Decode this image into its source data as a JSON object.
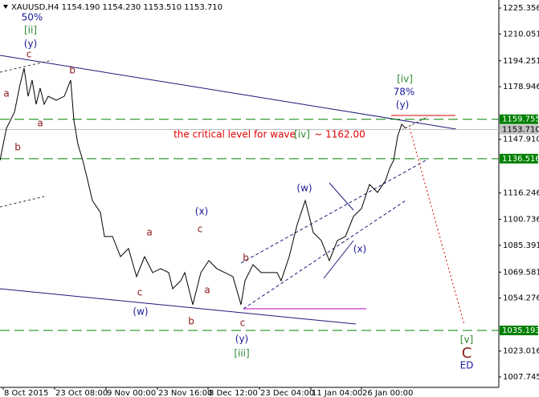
{
  "chart_data": {
    "type": "line",
    "title": "XAUUSD,H4  1154.190 1154.230 1153.510 1153.710",
    "xlim": [
      0,
      621
    ],
    "ylim": [
      1001.6,
      1230.1
    ],
    "xticks": [
      {
        "value": 4,
        "label": "8 Oct 2015"
      },
      {
        "value": 68,
        "label": "23 Oct 08:00"
      },
      {
        "value": 132,
        "label": "9 Nov 00:00"
      },
      {
        "value": 196,
        "label": "23 Nov 16:00"
      },
      {
        "value": 259,
        "label": "8 Dec 12:00"
      },
      {
        "value": 323,
        "label": "23 Dec 04:00"
      },
      {
        "value": 387,
        "label": "11 Jan 04:00"
      },
      {
        "value": 450,
        "label": "26 Jan 00:00"
      }
    ],
    "yticks": [
      1225.356,
      1210.051,
      1194.251,
      1178.946,
      {
        "value": 1147.91,
        "label": "1147.910"
      },
      1116.246,
      1100.736,
      1085.391,
      1069.581,
      1054.276,
      1023.016,
      1007.745
    ],
    "series": [
      {
        "name": "XAUUSD",
        "color": "#000000",
        "x": [
          0,
          8,
          18,
          25,
          30,
          35,
          40,
          45,
          50,
          55,
          60,
          70,
          80,
          88,
          92,
          97,
          103,
          108,
          115,
          125,
          130,
          140,
          150,
          160,
          170,
          180,
          190,
          200,
          210,
          215,
          225,
          230,
          240,
          250,
          260,
          270,
          280,
          290,
          300,
          305,
          315,
          325,
          335,
          345,
          350,
          360,
          370,
          380,
          390,
          400,
          410,
          420,
          430,
          440,
          450,
          460,
          470,
          480,
          485,
          490,
          495,
          500,
          505
        ],
        "values": [
          1135.5,
          1154.4,
          1163.9,
          1180.4,
          1189.9,
          1173.3,
          1182.8,
          1168.6,
          1178.1,
          1168.6,
          1173.3,
          1171.0,
          1173.3,
          1182.8,
          1159.1,
          1145.0,
          1135.5,
          1126.0,
          1111.8,
          1104.8,
          1090.6,
          1090.6,
          1078.7,
          1083.5,
          1066.9,
          1078.7,
          1069.3,
          1071.6,
          1069.3,
          1059.8,
          1064.5,
          1069.3,
          1050.4,
          1069.3,
          1076.4,
          1071.6,
          1069.3,
          1066.9,
          1050.4,
          1064.5,
          1074.0,
          1069.3,
          1069.3,
          1069.3,
          1064.5,
          1078.7,
          1097.7,
          1111.8,
          1092.9,
          1088.2,
          1076.4,
          1088.2,
          1090.6,
          1102.4,
          1107.1,
          1121.3,
          1116.6,
          1123.7,
          1130.8,
          1135.5,
          1149.7,
          1156.8,
          1154.4
        ]
      }
    ],
    "levels": [
      {
        "value": 1159.755,
        "color": "#008000"
      },
      {
        "value": 1136.516,
        "color": "#008000"
      },
      {
        "value": 1035.193,
        "color": "#008000"
      },
      {
        "value": 1153.71,
        "label": "1153.710",
        "color": "#c0c0c0"
      }
    ],
    "annotations": [
      {
        "text": "50%",
        "color": "#1a1a9c"
      },
      {
        "text": "[ii]",
        "color": "#2e8b2e"
      },
      {
        "text": "(y)",
        "color": "#1a1a9c"
      },
      {
        "text": "c",
        "color": "#8b1a1a"
      },
      {
        "text": "a",
        "color": "#8b1a1a"
      },
      {
        "text": "b",
        "color": "#8b1a1a"
      },
      {
        "text": "a",
        "color": "#8b1a1a"
      },
      {
        "text": "b",
        "color": "#8b1a1a"
      },
      {
        "text": "(x)",
        "color": "#1a1a9c"
      },
      {
        "text": "a",
        "color": "#8b1a1a"
      },
      {
        "text": "c",
        "color": "#8b1a1a"
      },
      {
        "text": "c",
        "color": "#8b1a1a"
      },
      {
        "text": "a",
        "color": "#8b1a1a"
      },
      {
        "text": "b",
        "color": "#8b1a1a"
      },
      {
        "text": "(w)",
        "color": "#1a1a9c"
      },
      {
        "text": "b",
        "color": "#8b1a1a"
      },
      {
        "text": "c",
        "color": "#8b1a1a"
      },
      {
        "text": "(y)",
        "color": "#1a1a9c"
      },
      {
        "text": "[iii]",
        "color": "#2e8b2e"
      },
      {
        "text": "(w)",
        "color": "#1a1a9c"
      },
      {
        "text": "(x)",
        "color": "#1a1a9c"
      },
      {
        "text": "[iv]",
        "color": "#2e8b2e"
      },
      {
        "text": "78%",
        "color": "#1a1a9c"
      },
      {
        "text": "(y)",
        "color": "#1a1a9c"
      },
      {
        "text": "the critical level for wave",
        "color": "#e00000"
      },
      {
        "text": "[iv]",
        "color": "#2e8b2e"
      },
      {
        "text": "~ 1162.00",
        "color": "#e00000"
      },
      {
        "text": "[v]",
        "color": "#2e8b2e"
      },
      {
        "text": "C",
        "color": "#8b1a1a"
      },
      {
        "text": "ED",
        "color": "#1a1a9c"
      }
    ]
  }
}
